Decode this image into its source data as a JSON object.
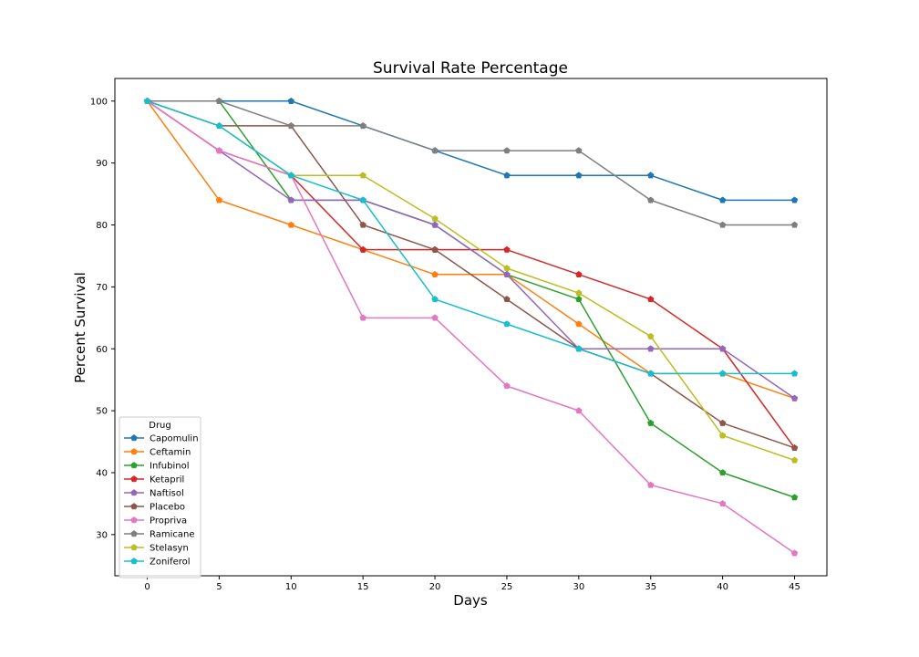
{
  "chart_data": {
    "type": "line",
    "title": "Survival Rate Percentage",
    "xlabel": "Days",
    "ylabel": "Percent Survival",
    "x": [
      0,
      5,
      10,
      15,
      20,
      25,
      30,
      35,
      40,
      45
    ],
    "xlim": [
      -2.25,
      47.25
    ],
    "ylim": [
      23.35,
      103.65
    ],
    "xticks": [
      0,
      5,
      10,
      15,
      20,
      25,
      30,
      35,
      40,
      45
    ],
    "yticks": [
      30,
      40,
      50,
      60,
      70,
      80,
      90,
      100
    ],
    "grid": false,
    "legend": {
      "title": "Drug",
      "placement": "lower-left"
    },
    "series": [
      {
        "name": "Capomulin",
        "color": "#1f77b4",
        "values": [
          100,
          100,
          100,
          96,
          92,
          88,
          88,
          88,
          84,
          84
        ]
      },
      {
        "name": "Ceftamin",
        "color": "#ff7f0e",
        "values": [
          100,
          84,
          80,
          76,
          72,
          72,
          64,
          56,
          56,
          52
        ]
      },
      {
        "name": "Infubinol",
        "color": "#2ca02c",
        "values": [
          100,
          100,
          84,
          84,
          80,
          72,
          68,
          48,
          40,
          36
        ]
      },
      {
        "name": "Ketapril",
        "color": "#d62728",
        "values": [
          100,
          92,
          88,
          76,
          76,
          76,
          72,
          68,
          60,
          44
        ]
      },
      {
        "name": "Naftisol",
        "color": "#9467bd",
        "values": [
          100,
          92,
          84,
          84,
          80,
          72,
          60,
          60,
          60,
          52
        ]
      },
      {
        "name": "Placebo",
        "color": "#8c564b",
        "values": [
          100,
          96,
          96,
          80,
          76,
          68,
          60,
          56,
          48,
          44
        ]
      },
      {
        "name": "Propriva",
        "color": "#e377c2",
        "values": [
          100,
          92,
          88,
          65,
          65,
          54,
          50,
          38,
          35,
          27
        ]
      },
      {
        "name": "Ramicane",
        "color": "#7f7f7f",
        "values": [
          100,
          100,
          96,
          96,
          92,
          92,
          92,
          84,
          80,
          80
        ]
      },
      {
        "name": "Stelasyn",
        "color": "#bcbd22",
        "values": [
          100,
          96,
          88,
          88,
          81,
          73,
          69,
          62,
          46,
          42
        ]
      },
      {
        "name": "Zoniferol",
        "color": "#17becf",
        "values": [
          100,
          96,
          88,
          84,
          68,
          64,
          60,
          56,
          56,
          56
        ]
      }
    ]
  }
}
